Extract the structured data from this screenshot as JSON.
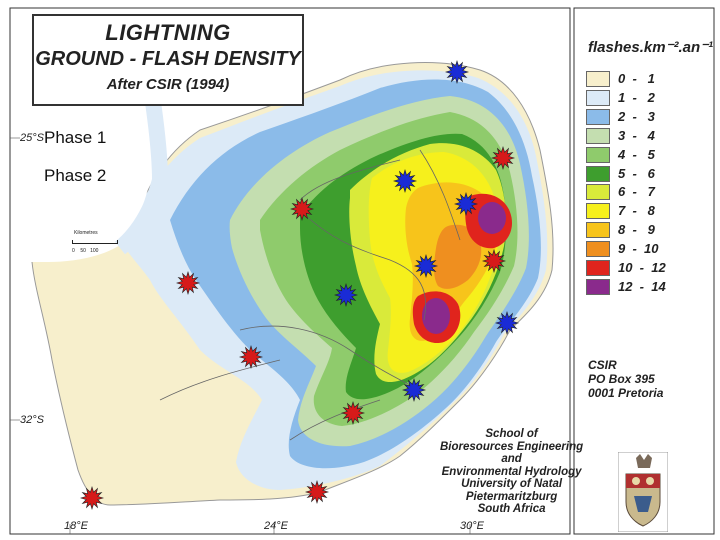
{
  "title": {
    "line1": "LIGHTNING",
    "line2": "GROUND - FLASH DENSITY",
    "line3": "After CSIR (1994)"
  },
  "phase_labels": {
    "phase1": "Phase 1",
    "phase2": "Phase 2"
  },
  "phase_colors": {
    "phase1": "#1a2bd6",
    "phase2": "#d61a1a"
  },
  "legend": {
    "title": "flashes.km⁻².an⁻¹",
    "entries": [
      {
        "range": "0  -   1",
        "color": "#f7efcc"
      },
      {
        "range": "1  -   2",
        "color": "#dceaf7"
      },
      {
        "range": "2  -   3",
        "color": "#8bbbe9"
      },
      {
        "range": "3  -   4",
        "color": "#c4deb0"
      },
      {
        "range": "4  -   5",
        "color": "#8fcb6c"
      },
      {
        "range": "5  -   6",
        "color": "#3e9e2e"
      },
      {
        "range": "6  -   7",
        "color": "#d9ea3a"
      },
      {
        "range": "7  -   8",
        "color": "#f6f01c"
      },
      {
        "range": "8  -   9",
        "color": "#f7c41b"
      },
      {
        "range": "9  -  10",
        "color": "#ef8f1f"
      },
      {
        "range": "10  -  12",
        "color": "#e0241d"
      },
      {
        "range": "12  -  14",
        "color": "#8a2a8c"
      }
    ]
  },
  "csir": [
    "CSIR",
    "PO Box 395",
    "0001 Pretoria"
  ],
  "school": [
    "School of",
    "Bioresources Engineering",
    "and",
    "Environmental Hydrology",
    "University of Natal",
    "Pietermaritzburg",
    "South Africa"
  ],
  "scale": {
    "title": "Kilometres",
    "labels": "0    50   100"
  },
  "latitudes": [
    "25°S",
    "32°S"
  ],
  "longitudes": [
    "18°E",
    "24°E",
    "30°E"
  ],
  "map_colors": {
    "outside": "#ffffff",
    "sea_edge": "#d0e4f4"
  }
}
